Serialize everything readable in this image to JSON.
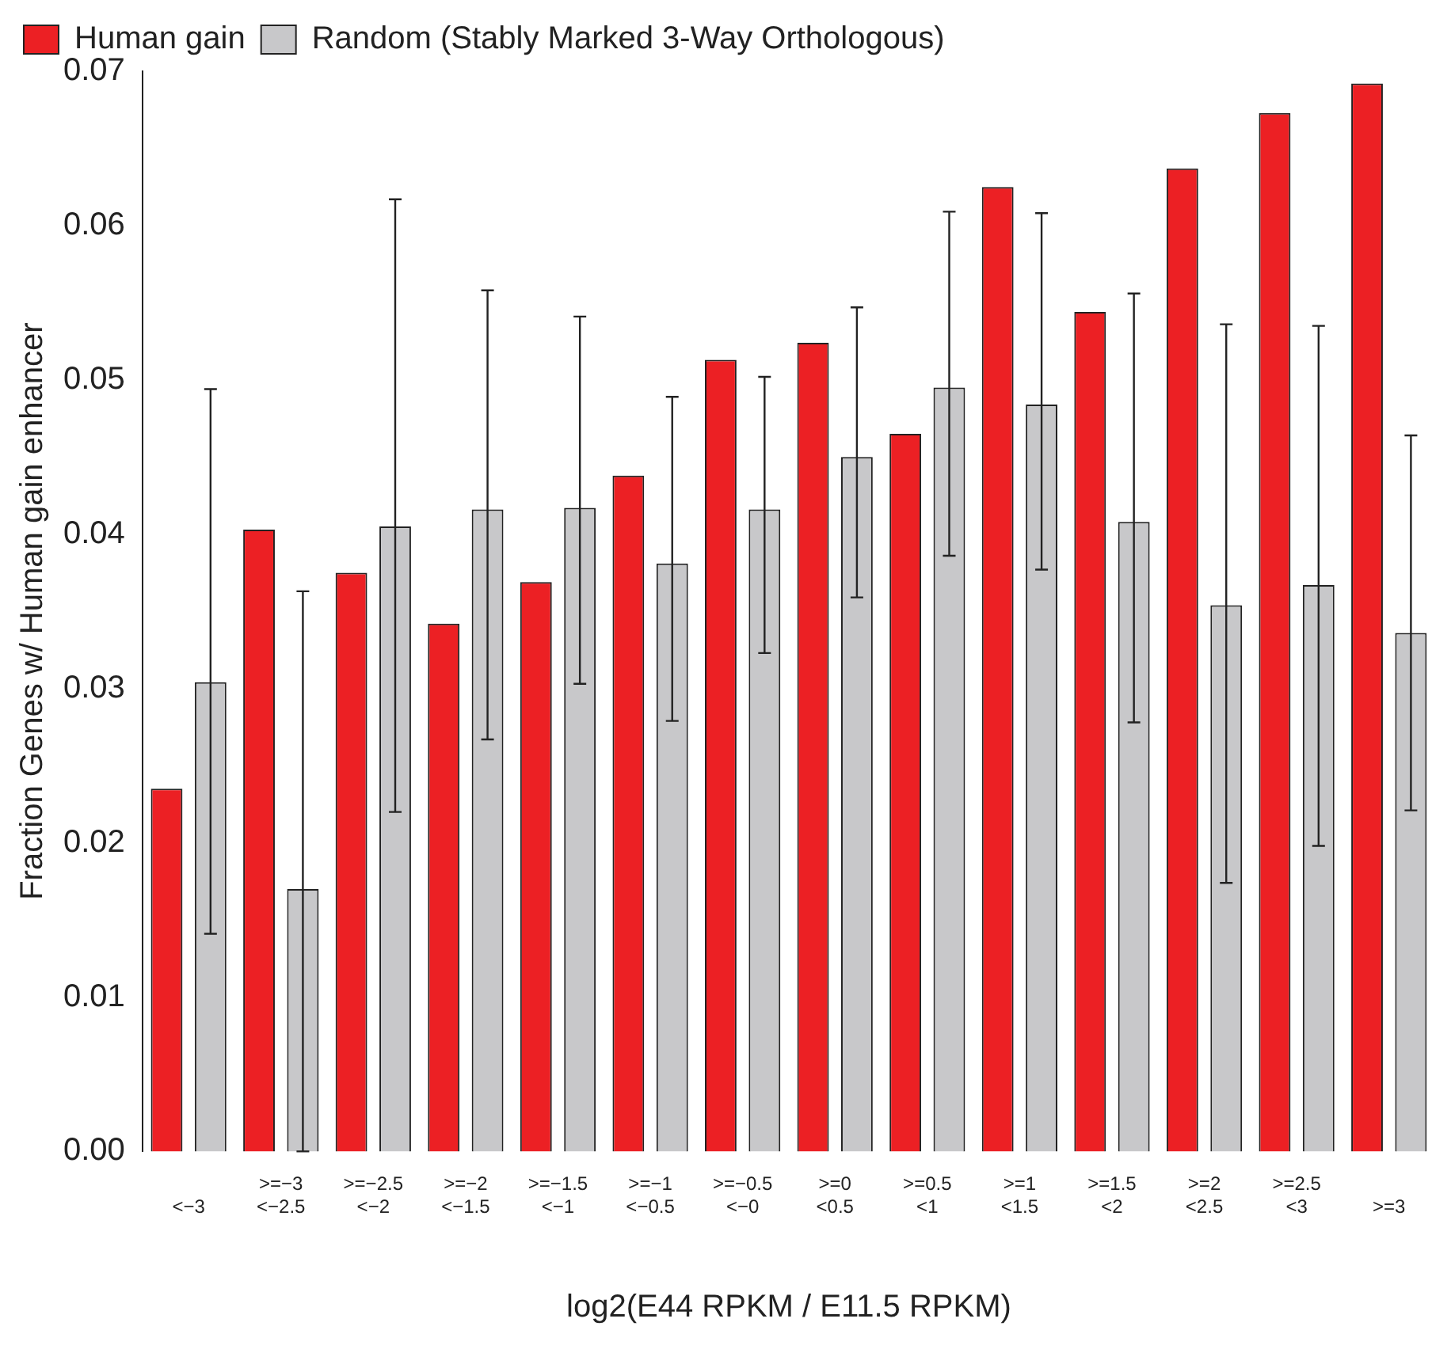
{
  "chart_data": {
    "type": "bar",
    "xlabel": "log2(E44 RPKM / E11.5 RPKM)",
    "ylabel": "Fraction Genes w/ Human gain enhancer",
    "categories": [
      "<−3",
      ">=−3\n<−2.5",
      ">=−2.5\n<−2",
      ">=−2\n<−1.5",
      ">=−1.5\n<−1",
      ">=−1\n<−0.5",
      ">=−0.5\n<−0",
      ">=0\n<0.5",
      ">=0.5\n<1",
      ">=1\n<1.5",
      ">=1.5\n<2",
      ">=2\n<2.5",
      ">=2.5\n<3",
      ">=3"
    ],
    "series": [
      {
        "name": "Human gain",
        "color": "#ec2024",
        "values": [
          0.0235,
          0.0403,
          0.0375,
          0.0342,
          0.0369,
          0.0438,
          0.0513,
          0.0524,
          0.0465,
          0.0625,
          0.0544,
          0.0637,
          0.0673,
          0.0692
        ]
      },
      {
        "name": "Random (Stably Marked 3-Way Orthologous)",
        "color": "#c8c8ca",
        "values": [
          0.0304,
          0.017,
          0.0405,
          0.0416,
          0.0417,
          0.0381,
          0.0416,
          0.045,
          0.0495,
          0.0484,
          0.0408,
          0.0354,
          0.0367,
          0.0336
        ],
        "errors": [
          [
            0.0141,
            0.0494
          ],
          [
            0,
            0.0363
          ],
          [
            0.022,
            0.0617
          ],
          [
            0.0267,
            0.0558
          ],
          [
            0.0303,
            0.0541
          ],
          [
            0.0279,
            0.0489
          ],
          [
            0.0323,
            0.0502
          ],
          [
            0.0359,
            0.0547
          ],
          [
            0.0386,
            0.0609
          ],
          [
            0.0377,
            0.0608
          ],
          [
            0.0278,
            0.0556
          ],
          [
            0.0174,
            0.0536
          ],
          [
            0.0198,
            0.0535
          ],
          [
            0.0221,
            0.0464
          ]
        ]
      }
    ],
    "ylim": [
      0,
      0.07
    ],
    "yticks": [
      {
        "value": 0,
        "label": "0.00"
      },
      {
        "value": 0.01,
        "label": "0.01"
      },
      {
        "value": 0.02,
        "label": "0.02"
      },
      {
        "value": 0.03,
        "label": "0.03"
      },
      {
        "value": 0.04,
        "label": "0.04"
      },
      {
        "value": 0.05,
        "label": "0.05"
      },
      {
        "value": 0.06,
        "label": "0.06"
      },
      {
        "value": 0.07,
        "label": "0.07"
      }
    ],
    "grid": false,
    "legend": "top left"
  }
}
